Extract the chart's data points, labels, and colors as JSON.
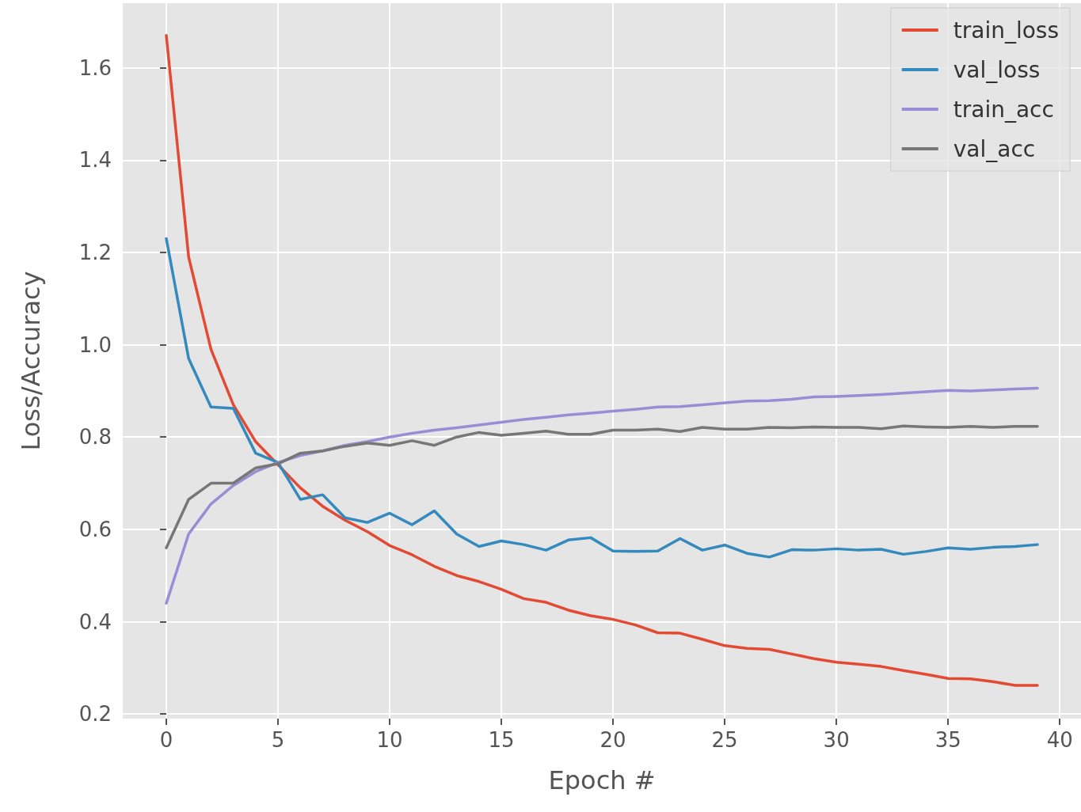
{
  "chart_data": {
    "type": "line",
    "xlabel": "Epoch #",
    "ylabel": "Loss/Accuracy",
    "x": [
      0,
      1,
      2,
      3,
      4,
      5,
      6,
      7,
      8,
      9,
      10,
      11,
      12,
      13,
      14,
      15,
      16,
      17,
      18,
      19,
      20,
      21,
      22,
      23,
      24,
      25,
      26,
      27,
      28,
      29,
      30,
      31,
      32,
      33,
      34,
      35,
      36,
      37,
      38,
      39
    ],
    "series": [
      {
        "name": "train_loss",
        "color": "#e24a33",
        "values": [
          1.67,
          1.19,
          0.99,
          0.87,
          0.79,
          0.74,
          0.69,
          0.65,
          0.62,
          0.595,
          0.565,
          0.545,
          0.52,
          0.5,
          0.487,
          0.47,
          0.45,
          0.442,
          0.425,
          0.413,
          0.405,
          0.393,
          0.376,
          0.375,
          0.362,
          0.348,
          0.342,
          0.34,
          0.33,
          0.32,
          0.312,
          0.308,
          0.303,
          0.294,
          0.286,
          0.277,
          0.276,
          0.27,
          0.262,
          0.262
        ]
      },
      {
        "name": "val_loss",
        "color": "#348abd",
        "values": [
          1.23,
          0.97,
          0.865,
          0.862,
          0.765,
          0.745,
          0.665,
          0.675,
          0.625,
          0.615,
          0.635,
          0.61,
          0.64,
          0.59,
          0.563,
          0.575,
          0.567,
          0.555,
          0.577,
          0.582,
          0.553,
          0.552,
          0.553,
          0.58,
          0.555,
          0.566,
          0.548,
          0.54,
          0.556,
          0.555,
          0.558,
          0.555,
          0.557,
          0.546,
          0.552,
          0.56,
          0.557,
          0.561,
          0.563,
          0.567
        ]
      },
      {
        "name": "train_acc",
        "color": "#988ed5",
        "values": [
          0.44,
          0.59,
          0.655,
          0.695,
          0.725,
          0.745,
          0.76,
          0.77,
          0.782,
          0.79,
          0.8,
          0.808,
          0.815,
          0.82,
          0.826,
          0.832,
          0.838,
          0.843,
          0.848,
          0.852,
          0.856,
          0.86,
          0.865,
          0.866,
          0.87,
          0.874,
          0.878,
          0.879,
          0.882,
          0.887,
          0.888,
          0.89,
          0.892,
          0.895,
          0.898,
          0.901,
          0.9,
          0.902,
          0.904,
          0.906
        ]
      },
      {
        "name": "val_acc",
        "color": "#777777",
        "values": [
          0.56,
          0.665,
          0.7,
          0.7,
          0.733,
          0.742,
          0.765,
          0.77,
          0.78,
          0.787,
          0.782,
          0.792,
          0.782,
          0.8,
          0.81,
          0.804,
          0.808,
          0.813,
          0.806,
          0.806,
          0.815,
          0.815,
          0.817,
          0.812,
          0.821,
          0.817,
          0.817,
          0.821,
          0.82,
          0.822,
          0.821,
          0.821,
          0.818,
          0.824,
          0.822,
          0.821,
          0.823,
          0.821,
          0.823,
          0.823
        ]
      }
    ],
    "xlim": [
      -1.95,
      40.95
    ],
    "xticks": [
      0,
      5,
      10,
      15,
      20,
      25,
      30,
      35,
      40
    ],
    "ylim": [
      0.19,
      1.74
    ],
    "yticks": [
      0.2,
      0.4,
      0.6,
      0.8,
      {
        "value": 1,
        "label": "1.0"
      },
      1.2,
      1.4,
      1.6
    ],
    "grid": true,
    "legend": "top right",
    "line_style": "solid"
  }
}
